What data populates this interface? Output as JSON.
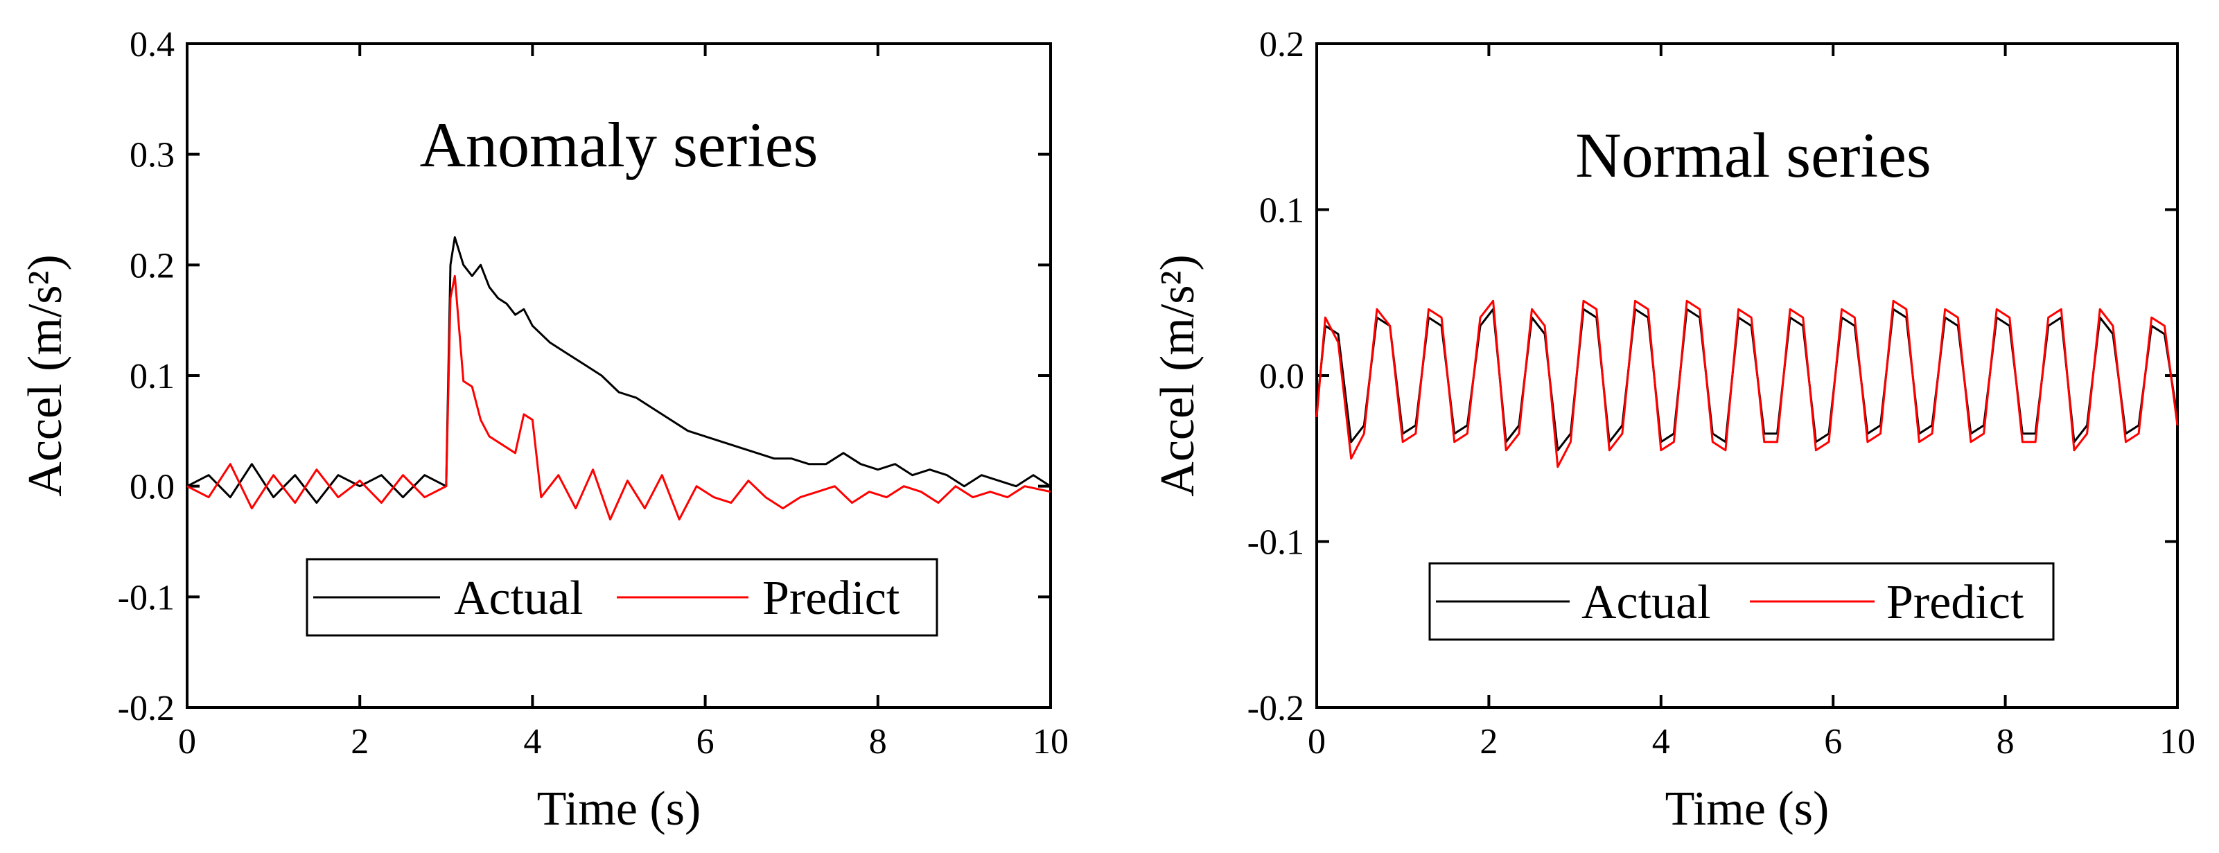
{
  "chart_data": [
    {
      "type": "line",
      "title": "Anomaly series",
      "xlabel": "Time (s)",
      "ylabel": "Accel (m/s²)",
      "xlim": [
        0,
        10
      ],
      "ylim": [
        -0.2,
        0.4
      ],
      "xticks": [
        "0",
        "2",
        "4",
        "6",
        "8",
        "10"
      ],
      "yticks": [
        "-0.2",
        "-0.1",
        "0.0",
        "0.1",
        "0.2",
        "0.3",
        "0.4"
      ],
      "legend": [
        "Actual",
        "Predict"
      ],
      "colors": {
        "Actual": "#000000",
        "Predict": "#ff0000"
      },
      "series": [
        {
          "name": "Actual",
          "x": [
            0,
            0.25,
            0.5,
            0.75,
            1.0,
            1.25,
            1.5,
            1.75,
            2.0,
            2.25,
            2.5,
            2.75,
            3.0,
            3.05,
            3.1,
            3.2,
            3.3,
            3.4,
            3.5,
            3.6,
            3.7,
            3.8,
            3.9,
            4.0,
            4.2,
            4.4,
            4.6,
            4.8,
            5.0,
            5.2,
            5.4,
            5.6,
            5.8,
            6.0,
            6.2,
            6.4,
            6.6,
            6.8,
            7.0,
            7.2,
            7.4,
            7.6,
            7.8,
            8.0,
            8.2,
            8.4,
            8.6,
            8.8,
            9.0,
            9.2,
            9.4,
            9.6,
            9.8,
            10.0
          ],
          "values": [
            0.0,
            0.01,
            -0.01,
            0.02,
            -0.01,
            0.01,
            -0.015,
            0.01,
            0.0,
            0.01,
            -0.01,
            0.01,
            0.0,
            0.2,
            0.225,
            0.2,
            0.19,
            0.2,
            0.18,
            0.17,
            0.165,
            0.155,
            0.16,
            0.145,
            0.13,
            0.12,
            0.11,
            0.1,
            0.085,
            0.08,
            0.07,
            0.06,
            0.05,
            0.045,
            0.04,
            0.035,
            0.03,
            0.025,
            0.025,
            0.02,
            0.02,
            0.03,
            0.02,
            0.015,
            0.02,
            0.01,
            0.015,
            0.01,
            0.0,
            0.01,
            0.005,
            0.0,
            0.01,
            0.0
          ]
        },
        {
          "name": "Predict",
          "x": [
            0,
            0.25,
            0.5,
            0.75,
            1.0,
            1.25,
            1.5,
            1.75,
            2.0,
            2.25,
            2.5,
            2.75,
            3.0,
            3.05,
            3.1,
            3.2,
            3.3,
            3.4,
            3.5,
            3.6,
            3.7,
            3.8,
            3.9,
            4.0,
            4.1,
            4.3,
            4.5,
            4.7,
            4.9,
            5.1,
            5.3,
            5.5,
            5.7,
            5.9,
            6.1,
            6.3,
            6.5,
            6.7,
            6.9,
            7.1,
            7.3,
            7.5,
            7.7,
            7.9,
            8.1,
            8.3,
            8.5,
            8.7,
            8.9,
            9.1,
            9.3,
            9.5,
            9.7,
            10.0
          ],
          "values": [
            0.0,
            -0.01,
            0.02,
            -0.02,
            0.01,
            -0.015,
            0.015,
            -0.01,
            0.005,
            -0.015,
            0.01,
            -0.01,
            0.0,
            0.17,
            0.19,
            0.095,
            0.09,
            0.06,
            0.045,
            0.04,
            0.035,
            0.03,
            0.065,
            0.06,
            -0.01,
            0.01,
            -0.02,
            0.015,
            -0.03,
            0.005,
            -0.02,
            0.01,
            -0.03,
            0.0,
            -0.01,
            -0.015,
            0.005,
            -0.01,
            -0.02,
            -0.01,
            -0.005,
            0.0,
            -0.015,
            -0.005,
            -0.01,
            0.0,
            -0.005,
            -0.015,
            0.0,
            -0.01,
            -0.005,
            -0.01,
            0.0,
            -0.005
          ]
        }
      ]
    },
    {
      "type": "line",
      "title": "Normal series",
      "xlabel": "Time (s)",
      "ylabel": "Accel (m/s²)",
      "xlim": [
        0,
        10
      ],
      "ylim": [
        -0.2,
        0.2
      ],
      "xticks": [
        "0",
        "2",
        "4",
        "6",
        "8",
        "10"
      ],
      "yticks": [
        "-0.2",
        "-0.1",
        "0.0",
        "0.1",
        "0.2"
      ],
      "legend": [
        "Actual",
        "Predict"
      ],
      "colors": {
        "Actual": "#000000",
        "Predict": "#ff0000"
      },
      "series": [
        {
          "name": "Actual",
          "x": [
            0.0,
            0.1,
            0.25,
            0.4,
            0.55,
            0.7,
            0.85,
            1.0,
            1.15,
            1.3,
            1.45,
            1.6,
            1.75,
            1.9,
            2.05,
            2.2,
            2.35,
            2.5,
            2.65,
            2.8,
            2.95,
            3.1,
            3.25,
            3.4,
            3.55,
            3.7,
            3.85,
            4.0,
            4.15,
            4.3,
            4.45,
            4.6,
            4.75,
            4.9,
            5.05,
            5.2,
            5.35,
            5.5,
            5.65,
            5.8,
            5.95,
            6.1,
            6.25,
            6.4,
            6.55,
            6.7,
            6.85,
            7.0,
            7.15,
            7.3,
            7.45,
            7.6,
            7.75,
            7.9,
            8.05,
            8.2,
            8.35,
            8.5,
            8.65,
            8.8,
            8.95,
            9.1,
            9.25,
            9.4,
            9.55,
            9.7,
            9.85,
            10.0
          ],
          "values": [
            -0.02,
            0.03,
            0.025,
            -0.04,
            -0.03,
            0.035,
            0.03,
            -0.035,
            -0.03,
            0.035,
            0.03,
            -0.035,
            -0.03,
            0.03,
            0.04,
            -0.04,
            -0.03,
            0.035,
            0.025,
            -0.045,
            -0.035,
            0.04,
            0.035,
            -0.04,
            -0.03,
            0.04,
            0.035,
            -0.04,
            -0.035,
            0.04,
            0.035,
            -0.035,
            -0.04,
            0.035,
            0.03,
            -0.035,
            -0.035,
            0.035,
            0.03,
            -0.04,
            -0.035,
            0.035,
            0.03,
            -0.035,
            -0.03,
            0.04,
            0.035,
            -0.035,
            -0.03,
            0.035,
            0.03,
            -0.035,
            -0.03,
            0.035,
            0.03,
            -0.035,
            -0.035,
            0.03,
            0.035,
            -0.04,
            -0.03,
            0.035,
            0.025,
            -0.035,
            -0.03,
            0.03,
            0.025,
            -0.025
          ]
        },
        {
          "name": "Predict",
          "x": [
            0.0,
            0.1,
            0.25,
            0.4,
            0.55,
            0.7,
            0.85,
            1.0,
            1.15,
            1.3,
            1.45,
            1.6,
            1.75,
            1.9,
            2.05,
            2.2,
            2.35,
            2.5,
            2.65,
            2.8,
            2.95,
            3.1,
            3.25,
            3.4,
            3.55,
            3.7,
            3.85,
            4.0,
            4.15,
            4.3,
            4.45,
            4.6,
            4.75,
            4.9,
            5.05,
            5.2,
            5.35,
            5.5,
            5.65,
            5.8,
            5.95,
            6.1,
            6.25,
            6.4,
            6.55,
            6.7,
            6.85,
            7.0,
            7.15,
            7.3,
            7.45,
            7.6,
            7.75,
            7.9,
            8.05,
            8.2,
            8.35,
            8.5,
            8.65,
            8.8,
            8.95,
            9.1,
            9.25,
            9.4,
            9.55,
            9.7,
            9.85,
            10.0
          ],
          "values": [
            -0.025,
            0.035,
            0.02,
            -0.05,
            -0.035,
            0.04,
            0.03,
            -0.04,
            -0.035,
            0.04,
            0.035,
            -0.04,
            -0.035,
            0.035,
            0.045,
            -0.045,
            -0.035,
            0.04,
            0.03,
            -0.055,
            -0.04,
            0.045,
            0.04,
            -0.045,
            -0.035,
            0.045,
            0.04,
            -0.045,
            -0.04,
            0.045,
            0.04,
            -0.04,
            -0.045,
            0.04,
            0.035,
            -0.04,
            -0.04,
            0.04,
            0.035,
            -0.045,
            -0.04,
            0.04,
            0.035,
            -0.04,
            -0.035,
            0.045,
            0.04,
            -0.04,
            -0.035,
            0.04,
            0.035,
            -0.04,
            -0.035,
            0.04,
            0.035,
            -0.04,
            -0.04,
            0.035,
            0.04,
            -0.045,
            -0.035,
            0.04,
            0.03,
            -0.04,
            -0.035,
            0.035,
            0.03,
            -0.03
          ]
        }
      ]
    }
  ]
}
